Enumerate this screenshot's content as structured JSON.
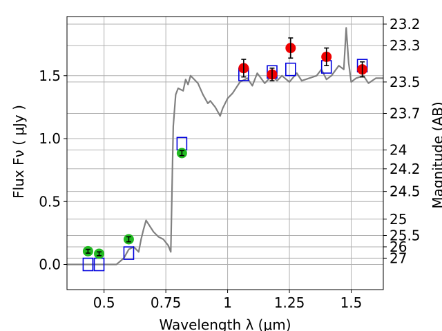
{
  "chart_data": {
    "type": "scatter",
    "title": "",
    "xlabel": "Wavelength  λ (μm)",
    "ylabel": "Flux  Fν  ( μJy )",
    "y2label": "Magnitude (AB)",
    "xlim": [
      0.35,
      1.63
    ],
    "ylim": [
      -0.2,
      1.97
    ],
    "grid": true,
    "x_ticks": [
      0.5,
      0.75,
      1,
      1.25,
      1.5
    ],
    "x_tick_labels": [
      "0.5",
      "0.75",
      "1",
      "1.25",
      "1.5"
    ],
    "y_ticks": [
      0.0,
      0.5,
      1.0,
      1.5
    ],
    "y_tick_labels": [
      "0.0",
      "0.5",
      "1.0",
      "1.5"
    ],
    "y2_ticks": [
      {
        "label": "23.2",
        "flux": 1.91
      },
      {
        "label": "23.3",
        "flux": 1.74
      },
      {
        "label": "23.5",
        "flux": 1.45
      },
      {
        "label": "23.7",
        "flux": 1.2
      },
      {
        "label": "24",
        "flux": 0.91
      },
      {
        "label": "24.2",
        "flux": 0.76
      },
      {
        "label": "24.5",
        "flux": 0.58
      },
      {
        "label": "25",
        "flux": 0.36
      },
      {
        "label": "25.5",
        "flux": 0.23
      },
      {
        "label": "26",
        "flux": 0.14
      },
      {
        "label": "27",
        "flux": 0.05
      }
    ],
    "colors": {
      "template": "#808080",
      "model_box": "#0000dd",
      "green": "#22bb22",
      "red": "#ee0000",
      "grid": "#b0b0b0"
    },
    "series": [
      {
        "kind": "line",
        "x": [
          0.35,
          0.55,
          0.58,
          0.6,
          0.62,
          0.64,
          0.65,
          0.66,
          0.67,
          0.68,
          0.7,
          0.72,
          0.74,
          0.76,
          0.77,
          0.78,
          0.79,
          0.8,
          0.82,
          0.83,
          0.84,
          0.85,
          0.86,
          0.88,
          0.9,
          0.92,
          0.93,
          0.95,
          0.97,
          0.98,
          1.0,
          1.02,
          1.05,
          1.08,
          1.1,
          1.12,
          1.15,
          1.18,
          1.2,
          1.22,
          1.25,
          1.28,
          1.3,
          1.33,
          1.36,
          1.38,
          1.4,
          1.42,
          1.45,
          1.47,
          1.48,
          1.49,
          1.5,
          1.52,
          1.55,
          1.57,
          1.6,
          1.63
        ],
        "y": [
          0.0,
          0.0,
          0.05,
          0.12,
          0.14,
          0.1,
          0.2,
          0.28,
          0.35,
          0.32,
          0.26,
          0.22,
          0.2,
          0.15,
          0.1,
          1.1,
          1.35,
          1.4,
          1.38,
          1.47,
          1.43,
          1.5,
          1.48,
          1.44,
          1.35,
          1.28,
          1.3,
          1.25,
          1.18,
          1.24,
          1.32,
          1.36,
          1.45,
          1.48,
          1.42,
          1.52,
          1.44,
          1.5,
          1.46,
          1.5,
          1.45,
          1.52,
          1.46,
          1.48,
          1.5,
          1.55,
          1.47,
          1.5,
          1.58,
          1.55,
          1.88,
          1.6,
          1.45,
          1.48,
          1.5,
          1.44,
          1.48,
          1.48
        ]
      },
      {
        "kind": "open-square",
        "x": [
          0.435,
          0.48,
          0.6,
          0.815,
          1.065,
          1.18,
          1.255,
          1.4,
          1.545
        ],
        "y": [
          0.0,
          0.0,
          0.09,
          0.96,
          1.51,
          1.53,
          1.55,
          1.57,
          1.58
        ]
      },
      {
        "kind": "point-errorbar",
        "color": "green",
        "x": [
          0.435,
          0.48,
          0.6,
          0.815
        ],
        "y": [
          0.105,
          0.085,
          0.2,
          0.885
        ],
        "yerr": [
          0.015,
          0.015,
          0.02,
          0.02
        ]
      },
      {
        "kind": "point-errorbar",
        "color": "red",
        "x": [
          1.065,
          1.18,
          1.255,
          1.4,
          1.545
        ],
        "y": [
          1.56,
          1.51,
          1.72,
          1.65,
          1.55
        ],
        "yerr": [
          0.07,
          0.05,
          0.08,
          0.07,
          0.06
        ]
      }
    ]
  }
}
